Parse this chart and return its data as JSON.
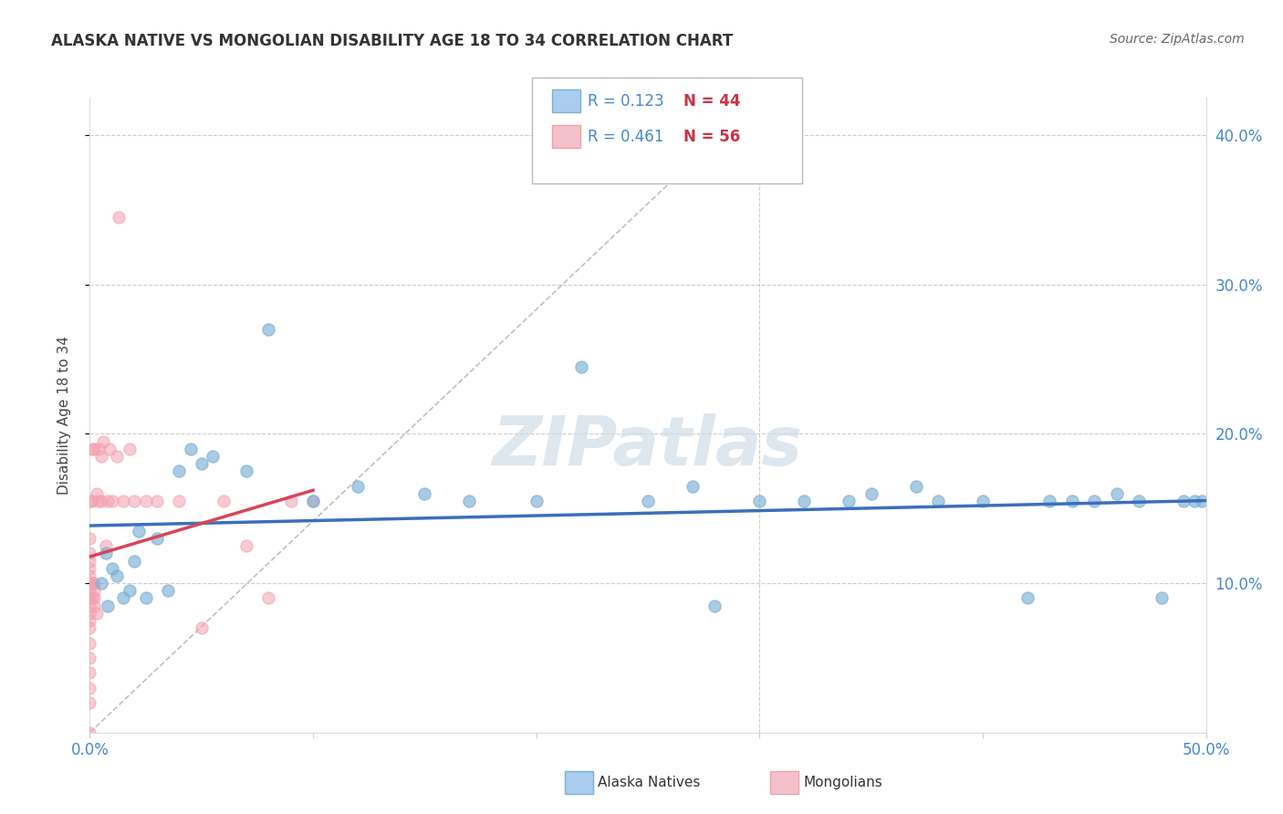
{
  "title": "ALASKA NATIVE VS MONGOLIAN DISABILITY AGE 18 TO 34 CORRELATION CHART",
  "source_text": "Source: ZipAtlas.com",
  "ylabel": "Disability Age 18 to 34",
  "xlim": [
    0.0,
    0.5
  ],
  "ylim": [
    0.0,
    0.425
  ],
  "blue_color": "#7bafd4",
  "pink_color": "#f4a0b0",
  "blue_line_color": "#3a6fbc",
  "pink_line_color": "#d9445a",
  "diag_line_color": "#ccbbbb",
  "grid_color": "#cccccc",
  "legend_R_blue": "R = 0.123",
  "legend_N_blue": "N = 44",
  "legend_R_pink": "R = 0.461",
  "legend_N_pink": "N = 56",
  "watermark": "ZIPatlas",
  "text_color_blue": "#4488cc",
  "text_color_red": "#cc3344",
  "alaska_natives_x": [
    0.005,
    0.007,
    0.008,
    0.01,
    0.012,
    0.015,
    0.018,
    0.02,
    0.022,
    0.025,
    0.03,
    0.035,
    0.04,
    0.045,
    0.05,
    0.055,
    0.07,
    0.08,
    0.1,
    0.12,
    0.15,
    0.17,
    0.2,
    0.22,
    0.25,
    0.27,
    0.28,
    0.3,
    0.32,
    0.34,
    0.35,
    0.37,
    0.38,
    0.4,
    0.42,
    0.43,
    0.44,
    0.45,
    0.46,
    0.47,
    0.48,
    0.49,
    0.495,
    0.498
  ],
  "alaska_natives_y": [
    0.1,
    0.12,
    0.085,
    0.11,
    0.105,
    0.09,
    0.095,
    0.115,
    0.135,
    0.09,
    0.13,
    0.095,
    0.175,
    0.19,
    0.18,
    0.185,
    0.175,
    0.27,
    0.155,
    0.165,
    0.16,
    0.155,
    0.155,
    0.245,
    0.155,
    0.165,
    0.085,
    0.155,
    0.155,
    0.155,
    0.16,
    0.165,
    0.155,
    0.155,
    0.09,
    0.155,
    0.155,
    0.155,
    0.16,
    0.155,
    0.09,
    0.155,
    0.155,
    0.155
  ],
  "mongolians_x": [
    0.0,
    0.0,
    0.0,
    0.0,
    0.0,
    0.0,
    0.0,
    0.0,
    0.0,
    0.0,
    0.0,
    0.0,
    0.0,
    0.0,
    0.0,
    0.0,
    0.0,
    0.0,
    0.0,
    0.0,
    0.0,
    0.0,
    0.001,
    0.001,
    0.001,
    0.001,
    0.002,
    0.002,
    0.002,
    0.002,
    0.002,
    0.003,
    0.003,
    0.004,
    0.004,
    0.005,
    0.005,
    0.006,
    0.007,
    0.008,
    0.009,
    0.01,
    0.012,
    0.013,
    0.015,
    0.018,
    0.02,
    0.025,
    0.03,
    0.04,
    0.05,
    0.06,
    0.07,
    0.08,
    0.09,
    0.1
  ],
  "mongolians_y": [
    0.0,
    0.02,
    0.03,
    0.04,
    0.05,
    0.06,
    0.07,
    0.075,
    0.08,
    0.085,
    0.09,
    0.09,
    0.095,
    0.1,
    0.1,
    0.1,
    0.105,
    0.11,
    0.115,
    0.12,
    0.13,
    0.155,
    0.09,
    0.1,
    0.155,
    0.19,
    0.085,
    0.09,
    0.095,
    0.1,
    0.19,
    0.08,
    0.16,
    0.155,
    0.19,
    0.155,
    0.185,
    0.195,
    0.125,
    0.155,
    0.19,
    0.155,
    0.185,
    0.345,
    0.155,
    0.19,
    0.155,
    0.155,
    0.155,
    0.155,
    0.07,
    0.155,
    0.125,
    0.09,
    0.155,
    0.155
  ]
}
